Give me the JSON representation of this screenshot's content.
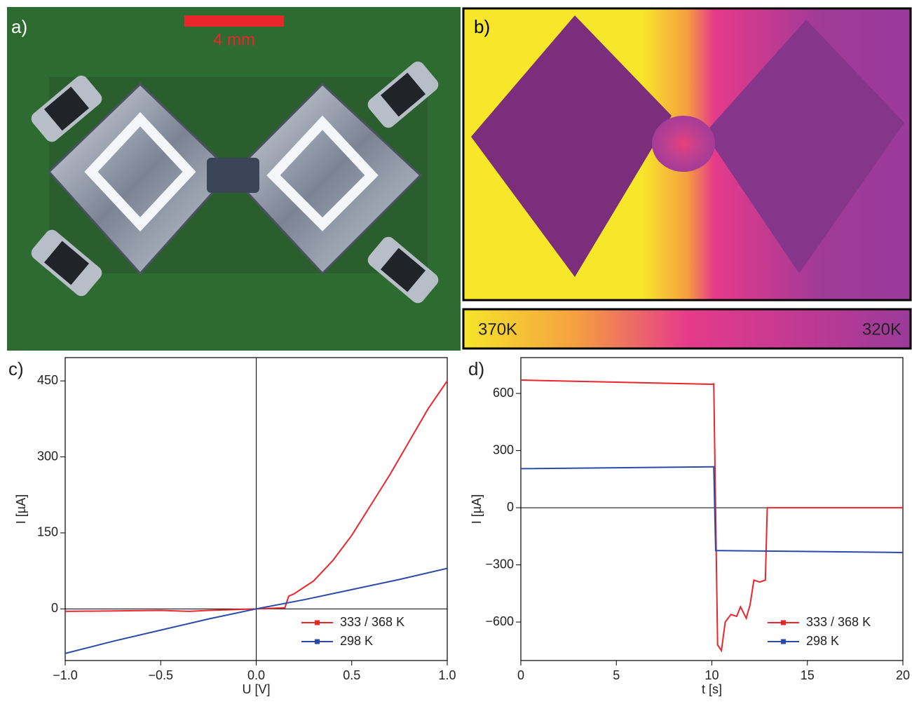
{
  "panels": {
    "a": {
      "label": "a)",
      "scale_bar": "4 mm"
    },
    "b": {
      "label": "b)",
      "colorbar_left": "370K",
      "colorbar_right": "320K"
    }
  },
  "chart_data": [
    {
      "type": "line",
      "label": "c)",
      "xlabel": "U [V]",
      "ylabel": "I [µA]",
      "xlim": [
        -1,
        1
      ],
      "ylim": [
        -102,
        496
      ],
      "xticks": [
        {
          "value": -1,
          "label": "−1.0"
        },
        {
          "value": -0.5,
          "label": "−0.5"
        },
        {
          "value": 0,
          "label": "0.0"
        },
        {
          "value": 0.5,
          "label": "0.5"
        },
        {
          "value": 1,
          "label": "1.0"
        }
      ],
      "yticks": [
        0,
        150,
        300,
        450
      ],
      "legend": "lower right",
      "series": [
        {
          "name": "333 / 368 K",
          "color": "#e8262b",
          "x": [
            -1,
            -0.75,
            -0.5,
            -0.35,
            -0.25,
            0,
            0.15,
            0.17,
            0.2,
            0.3,
            0.4,
            0.5,
            0.6,
            0.7,
            0.8,
            0.9,
            1
          ],
          "values": [
            -5,
            -4,
            -3,
            -5,
            -3,
            0,
            2,
            25,
            30,
            55,
            95,
            145,
            205,
            265,
            330,
            395,
            450
          ]
        },
        {
          "name": "298 K",
          "color": "#2b4aa8",
          "x": [
            -1,
            -0.75,
            -0.5,
            -0.25,
            0,
            0.25,
            0.5,
            0.75,
            1
          ],
          "values": [
            -88,
            -64,
            -42,
            -20,
            0,
            18,
            38,
            58,
            80
          ]
        }
      ]
    },
    {
      "type": "line",
      "label": "d)",
      "xlabel": "t [s]",
      "ylabel": "I [µA]",
      "xlim": [
        0,
        20
      ],
      "ylim": [
        -802,
        788
      ],
      "xticks": [
        0,
        5,
        10,
        15,
        20
      ],
      "yticks": [
        {
          "value": -600,
          "label": "−600"
        },
        {
          "value": -300,
          "label": "−300"
        },
        0,
        300,
        600
      ],
      "legend": "lower right",
      "series": [
        {
          "name": "333 / 368 K",
          "color": "#e8262b",
          "x": [
            0,
            10,
            10.1,
            10.3,
            10.5,
            10.7,
            11,
            11.3,
            11.5,
            11.8,
            12,
            12.2,
            12.5,
            12.8,
            12.9,
            20
          ],
          "values": [
            670,
            648,
            650,
            -720,
            -750,
            -600,
            -560,
            -570,
            -520,
            -580,
            -510,
            -380,
            -390,
            -380,
            0,
            0
          ]
        },
        {
          "name": "298 K",
          "color": "#2b4aa8",
          "x": [
            0,
            10.1,
            10.2,
            10.5,
            20
          ],
          "values": [
            205,
            215,
            -225,
            -225,
            -235
          ]
        }
      ]
    }
  ]
}
